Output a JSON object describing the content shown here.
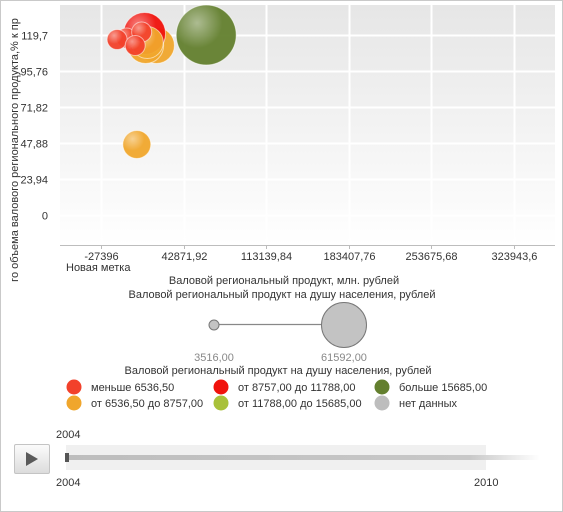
{
  "chart_data": {
    "type": "scatter",
    "subtype": "bubble",
    "ylabel": "го объема валового регионального продукта,% к пр",
    "xlabel": "Валовой региональный продукт, млн. рублей",
    "x_extra_label": "Новая метка",
    "x_ticks": [
      "-27396",
      "42871,92",
      "113139,84",
      "183407,76",
      "253675,68",
      "323943,6"
    ],
    "y_ticks": [
      "0",
      "23,94",
      "47,88",
      "71,82",
      "95,76",
      "119,7"
    ],
    "xlim": [
      -62530,
      359078
    ],
    "ylim": [
      -20,
      140
    ],
    "size_title": "Валовой региональный продукт на душу населения, рублей",
    "size_min_label": "3516,00",
    "size_max_label": "61592,00",
    "color_title": "Валовой региональный продукт на душу населения, рублей",
    "legend": [
      {
        "label": "меньше 6536,50",
        "color": "#f2412b"
      },
      {
        "label": "от 6536,50 до 8757,00",
        "color": "#f0a62c"
      },
      {
        "label": "от 8757,00 до 11788,00",
        "color": "#f0120c"
      },
      {
        "label": "от 11788,00 до 15685,00",
        "color": "#a9c13a"
      },
      {
        "label": "больше 15685,00",
        "color": "#637f2e"
      },
      {
        "label": "нет данных",
        "color": "#bdbdbd"
      }
    ],
    "points": [
      {
        "x": 2900,
        "y": 47,
        "r": 14,
        "color": "#f0a62c"
      },
      {
        "x": 19600,
        "y": 113,
        "r": 18,
        "color": "#f0a62c"
      },
      {
        "x": 10400,
        "y": 113,
        "r": 18,
        "color": "#f0a62c"
      },
      {
        "x": 9500,
        "y": 121,
        "r": 21,
        "color": "#f0120c"
      },
      {
        "x": 11800,
        "y": 115,
        "r": 16,
        "color": "#f0a62c"
      },
      {
        "x": -6000,
        "y": 118,
        "r": 10,
        "color": "#f2412b"
      },
      {
        "x": -13900,
        "y": 117,
        "r": 10,
        "color": "#f2412b"
      },
      {
        "x": 7000,
        "y": 122,
        "r": 10,
        "color": "#f2412b"
      },
      {
        "x": 1500,
        "y": 113,
        "r": 10,
        "color": "#f2412b"
      },
      {
        "x": 62000,
        "y": 120,
        "r": 30,
        "color": "#637f2e"
      }
    ]
  },
  "timeline": {
    "current_label": "2004",
    "start_label": "2004",
    "end_label": "2010",
    "progress": 0
  }
}
